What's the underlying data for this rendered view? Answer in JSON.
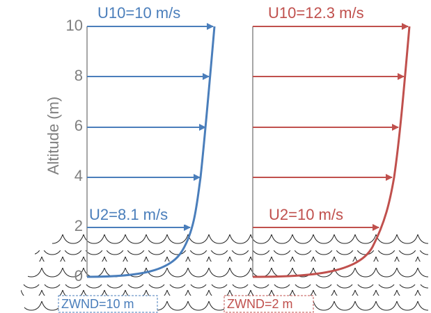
{
  "y_axis": {
    "title": "Altitude (m)",
    "ticks": [
      0,
      2,
      4,
      6,
      8,
      10
    ]
  },
  "profiles": [
    {
      "top_label": "U10=10 m/s",
      "bottom_label": "U2=8.1 m/s",
      "zwnd_label": "ZWND=10 m"
    },
    {
      "top_label": "U10=12.3 m/s",
      "bottom_label": "U2=10 m/s",
      "zwnd_label": "ZWND=2 m"
    }
  ]
}
